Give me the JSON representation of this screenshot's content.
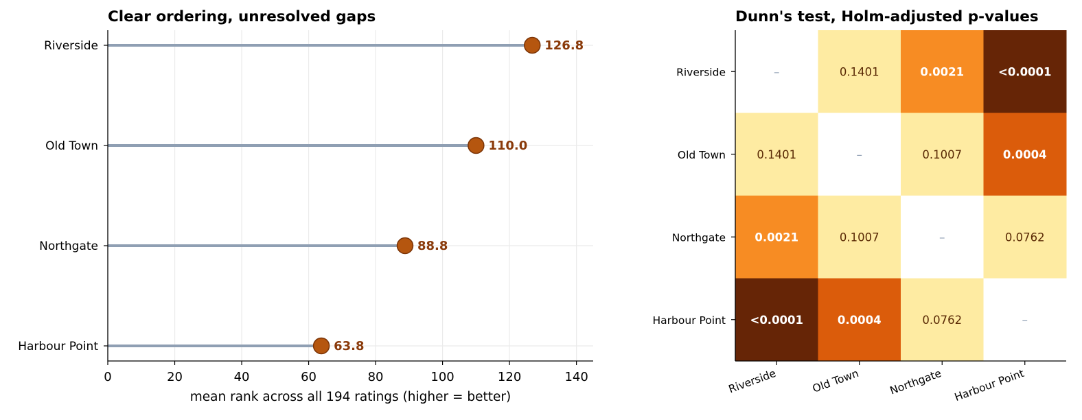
{
  "chart_data": [
    {
      "type": "lollipop",
      "title": "Clear ordering, unresolved gaps",
      "xlabel": "mean rank across all 194 ratings (higher = better)",
      "ylabel": "",
      "xlim": [
        0,
        145
      ],
      "xticks": [
        0,
        20,
        40,
        60,
        80,
        100,
        120,
        140
      ],
      "grid": true,
      "categories": [
        "Riverside",
        "Old Town",
        "Northgate",
        "Harbour Point"
      ],
      "values": [
        126.8,
        110.0,
        88.8,
        63.8
      ],
      "value_labels": [
        "126.8",
        "110.0",
        "88.8",
        "63.8"
      ],
      "colors": {
        "stem": "#8f9fb3",
        "marker": "#b5560f",
        "marker_edge": "#7a3306",
        "label": "#8a3a0a"
      }
    },
    {
      "type": "heatmap",
      "title": "Dunn's test, Holm-adjusted p-values",
      "rows": [
        "Riverside",
        "Old Town",
        "Northgate",
        "Harbour Point"
      ],
      "columns": [
        "Riverside",
        "Old Town",
        "Northgate",
        "Harbour Point"
      ],
      "values": [
        [
          null,
          0.1401,
          0.0021,
          5e-05
        ],
        [
          0.1401,
          null,
          0.1007,
          0.0004
        ],
        [
          0.0021,
          0.1007,
          null,
          0.0762
        ],
        [
          5e-05,
          0.0004,
          0.0762,
          null
        ]
      ],
      "cell_labels": [
        [
          "–",
          "0.1401",
          "0.0021",
          "<0.0001"
        ],
        [
          "0.1401",
          "–",
          "0.1007",
          "0.0004"
        ],
        [
          "0.0021",
          "0.1007",
          "–",
          "0.0762"
        ],
        [
          "<0.0001",
          "0.0004",
          "0.0762",
          "–"
        ]
      ],
      "cell_colors": [
        [
          "#ffffff",
          "#feeba2",
          "#f78c23",
          "#662506"
        ],
        [
          "#feeba2",
          "#ffffff",
          "#feeba2",
          "#db5c0b"
        ],
        [
          "#f78c23",
          "#feeba2",
          "#ffffff",
          "#feeba2"
        ],
        [
          "#662506",
          "#db5c0b",
          "#feeba2",
          "#ffffff"
        ]
      ],
      "label_colors": {
        "light": "#ffffff",
        "dark": "#5a2a05",
        "diag": "#8f9fb3"
      }
    }
  ]
}
